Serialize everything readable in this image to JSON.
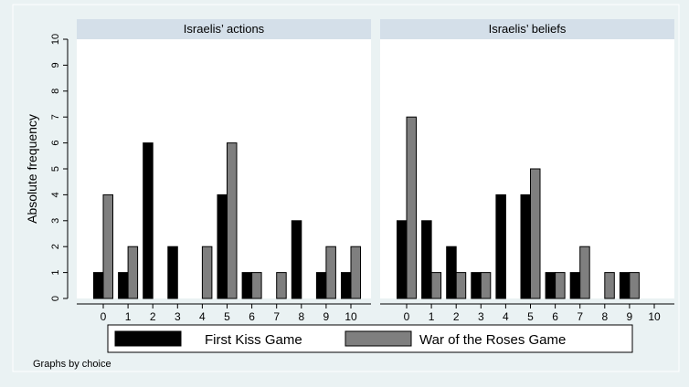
{
  "chart_data": {
    "type": "bar",
    "ylabel": "Absolute frequency",
    "ylim": [
      0,
      10
    ],
    "yticks": [
      0,
      1,
      2,
      3,
      4,
      5,
      6,
      7,
      8,
      9,
      10
    ],
    "categories": [
      "0",
      "1",
      "2",
      "3",
      "4",
      "5",
      "6",
      "7",
      "8",
      "9",
      "10"
    ],
    "note": "Graphs by choice",
    "legend": {
      "position": "bottom",
      "items": [
        {
          "name": "First Kiss Game",
          "color": "#000000"
        },
        {
          "name": "War of the Roses Game",
          "color": "#7f7f7f"
        }
      ]
    },
    "colors": {
      "page_bg": "#eaf2f3",
      "panel_bg": "#ffffff",
      "strip_bg": "#d4dfe9",
      "series1": "#000000",
      "series2": "#7f7f7f"
    },
    "panels": [
      {
        "title": "Israelis’ actions",
        "series": [
          {
            "name": "First Kiss Game",
            "values": [
              1,
              1,
              6,
              2,
              0,
              4,
              1,
              0,
              3,
              1,
              1
            ]
          },
          {
            "name": "War of the Roses Game",
            "values": [
              4,
              2,
              0,
              0,
              2,
              6,
              1,
              1,
              0,
              2,
              2
            ]
          }
        ]
      },
      {
        "title": "Israelis’ beliefs",
        "series": [
          {
            "name": "First Kiss Game",
            "values": [
              3,
              3,
              2,
              1,
              4,
              4,
              1,
              1,
              0,
              1,
              0
            ]
          },
          {
            "name": "War of the Roses Game",
            "values": [
              7,
              1,
              1,
              1,
              0,
              5,
              1,
              2,
              1,
              1,
              0
            ]
          }
        ]
      }
    ]
  }
}
